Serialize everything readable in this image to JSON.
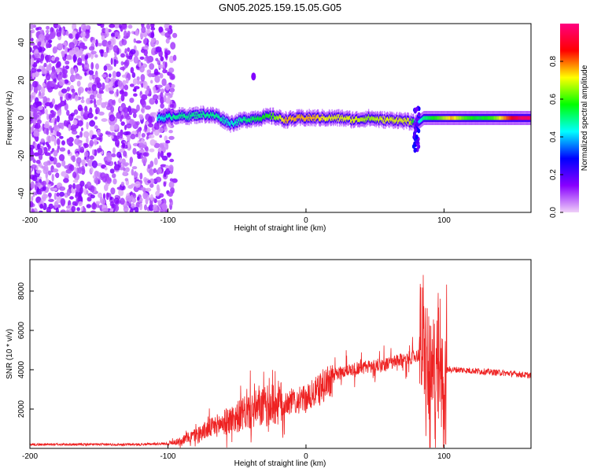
{
  "title": "GN05.2025.159.15.05.G05",
  "chart_data": [
    {
      "type": "heatmap",
      "xlabel": "Height of straight line (km)",
      "ylabel": "Frequency (Hz)",
      "xlim": [
        -200,
        163
      ],
      "ylim": [
        -50,
        50
      ],
      "xticks": [
        "-200",
        "-100",
        "0",
        "100"
      ],
      "xtick_values": [
        -200,
        -100,
        0,
        100
      ],
      "yticks": [
        "-40",
        "-20",
        "0",
        "20",
        "40"
      ],
      "ytick_values": [
        -40,
        -20,
        0,
        20,
        40
      ],
      "colorbar": {
        "label": "Normalized spectral amplitude",
        "range": [
          0,
          1
        ],
        "ticks": [
          "0.0",
          "0.2",
          "0.4",
          "0.6",
          "0.8"
        ],
        "tick_values": [
          0.0,
          0.2,
          0.4,
          0.6,
          0.8
        ],
        "colors": [
          "#f0d0f8",
          "#8800ff",
          "#0000ff",
          "#00ffff",
          "#00ff00",
          "#ffff00",
          "#ff0000",
          "#ff0080"
        ]
      },
      "signal_trace": {
        "x": [
          -105,
          -95,
          -85,
          -75,
          -65,
          -55,
          -45,
          -35,
          -25,
          -15,
          -5,
          5,
          15,
          25,
          35,
          45,
          55,
          65,
          75,
          80,
          85,
          95,
          105,
          115,
          125,
          135,
          145,
          155,
          163
        ],
        "y": [
          0,
          1,
          1,
          2,
          1,
          -3,
          -1,
          0,
          1,
          -1,
          0,
          0,
          0,
          0,
          -1,
          0,
          -1,
          -1,
          -2,
          -3,
          0,
          0,
          0,
          0,
          0,
          0,
          0,
          0,
          0
        ],
        "amplitude": [
          0.45,
          0.5,
          0.5,
          0.5,
          0.5,
          0.45,
          0.5,
          0.55,
          0.6,
          0.75,
          0.75,
          0.75,
          0.7,
          0.7,
          0.7,
          0.65,
          0.7,
          0.7,
          0.7,
          0.4,
          0.5,
          0.6,
          0.75,
          0.6,
          0.55,
          0.6,
          0.8,
          0.95,
          0.95
        ]
      }
    },
    {
      "type": "line",
      "xlabel": "Height of straight line (km)",
      "ylabel": "SNR (10 * v/v)",
      "xlim": [
        -200,
        163
      ],
      "ylim": [
        0,
        9600
      ],
      "xticks": [
        "-200",
        "-100",
        "0",
        "100"
      ],
      "xtick_values": [
        -200,
        -100,
        0,
        100
      ],
      "yticks": [
        "2000",
        "4000",
        "6000",
        "8000"
      ],
      "ytick_values": [
        2000,
        4000,
        6000,
        8000
      ],
      "color": "#ee2222",
      "series": [
        {
          "x": [
            -200,
            -180,
            -160,
            -140,
            -120,
            -100,
            -90,
            -80,
            -70,
            -60,
            -50,
            -40,
            -30,
            -20,
            -10,
            0,
            10,
            20,
            30,
            40,
            50,
            60,
            70,
            80,
            85,
            90,
            95,
            100,
            110,
            120,
            130,
            140,
            150,
            163
          ],
          "values": [
            200,
            200,
            200,
            200,
            200,
            250,
            400,
            700,
            1000,
            1300,
            1600,
            1900,
            2100,
            2300,
            2400,
            2500,
            3000,
            3700,
            4000,
            4100,
            4200,
            4300,
            4500,
            4700,
            4900,
            3000,
            3500,
            4000,
            4000,
            3950,
            3900,
            3850,
            3800,
            3700
          ]
        }
      ]
    }
  ]
}
